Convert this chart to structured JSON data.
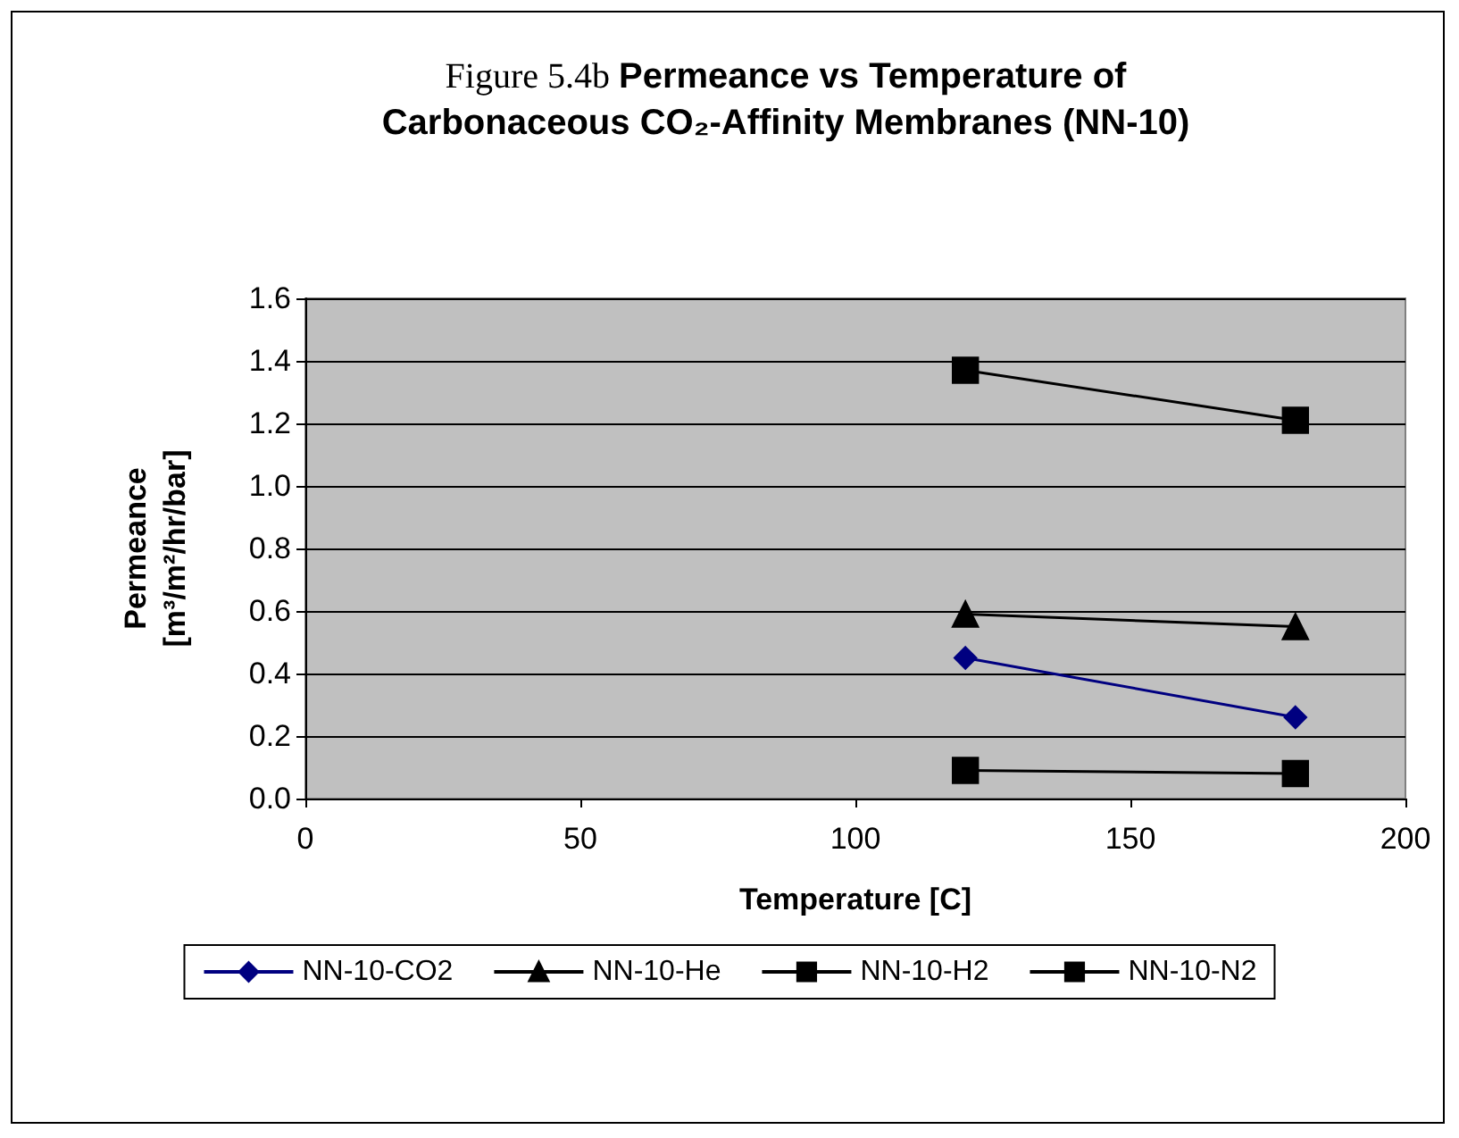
{
  "chart_data": {
    "type": "line",
    "title": "Figure 5.4b",
    "subtitle": "Permeance vs Temperature of Carbonaceous CO₂-Affinity Membranes (NN-10)",
    "xlabel": "Temperature [C]",
    "ylabel": "Permeance\n[m³/m²/hr/bar]",
    "x": [
      120,
      180
    ],
    "xlim": [
      0,
      200
    ],
    "xticks": [
      0,
      50,
      100,
      150,
      200
    ],
    "ylim": [
      0,
      1.6
    ],
    "yticks": [
      {
        "value": 0,
        "label": "0.0"
      },
      0.2,
      0.4,
      0.6,
      0.8,
      {
        "value": 1,
        "label": "1.0"
      },
      1.2,
      1.4,
      1.6
    ],
    "grid": "y",
    "legend": "bottom",
    "series": [
      {
        "name": "NN-10-CO2",
        "color": "#000080",
        "marker": "diamond",
        "values": [
          0.45,
          0.26
        ]
      },
      {
        "name": "NN-10-He",
        "color": "#000000",
        "marker": "triangle",
        "values": [
          0.59,
          0.55
        ]
      },
      {
        "name": "NN-10-H2",
        "color": "#000000",
        "marker": "square",
        "values": [
          1.37,
          1.21
        ]
      },
      {
        "name": "NN-10-N2",
        "color": "#000000",
        "marker": "square",
        "values": [
          0.09,
          0.08
        ]
      }
    ]
  }
}
